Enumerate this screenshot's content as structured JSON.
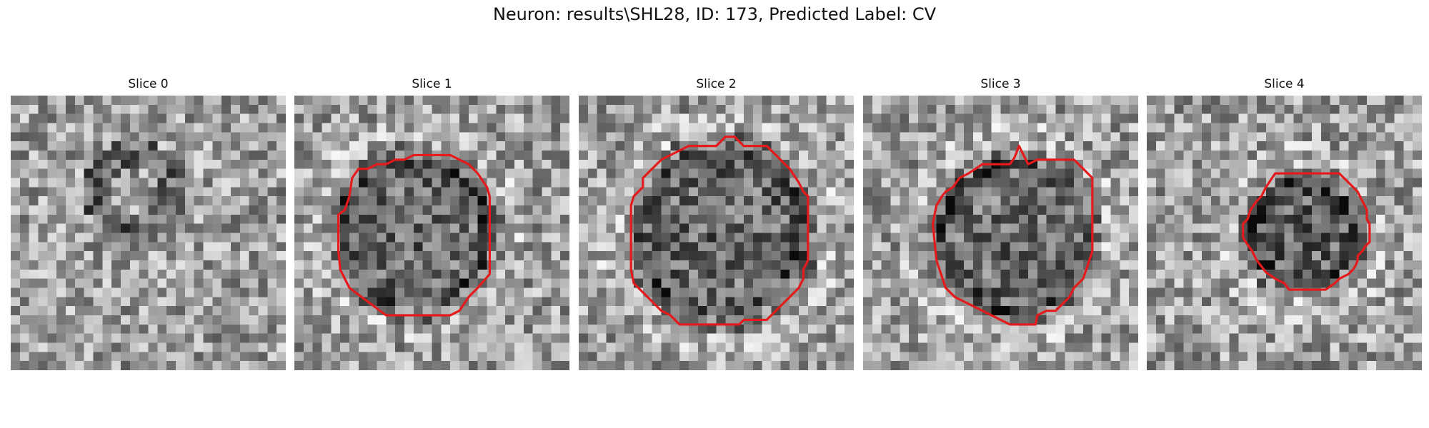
{
  "figure": {
    "title": "Neuron: results\\SHL28, ID: 173, Predicted Label: CV",
    "panels": [
      {
        "title": "Slice 0",
        "has_outline": false
      },
      {
        "title": "Slice 1",
        "has_outline": true
      },
      {
        "title": "Slice 2",
        "has_outline": true
      },
      {
        "title": "Slice 3",
        "has_outline": true
      },
      {
        "title": "Slice 4",
        "has_outline": true
      }
    ],
    "outline_color": "#e41a1c",
    "colormap": "gray"
  }
}
